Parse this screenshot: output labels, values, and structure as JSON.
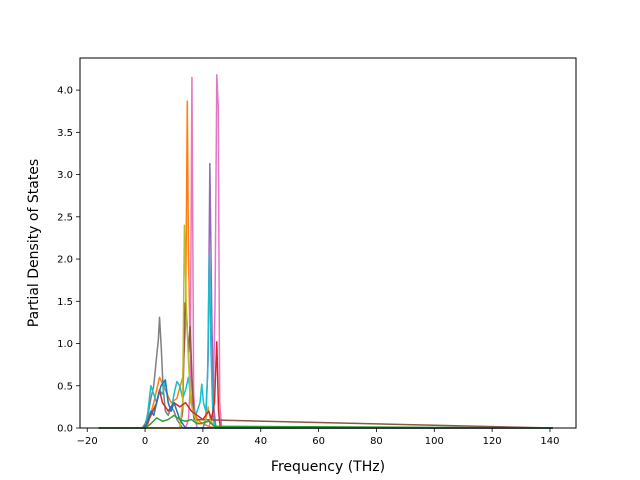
{
  "chart_data": {
    "type": "line",
    "title": "",
    "xlabel": "Frequency (THz)",
    "ylabel": "Partial Density of States",
    "xlim": [
      -22.5,
      149.0
    ],
    "ylim": [
      0.0,
      4.38
    ],
    "xticks": [
      -20,
      0,
      20,
      40,
      60,
      80,
      100,
      120,
      140
    ],
    "yticks": [
      0.0,
      0.5,
      1.0,
      1.5,
      2.0,
      2.5,
      3.0,
      3.5,
      4.0
    ],
    "xtick_labels": [
      "−20",
      "0",
      "20",
      "40",
      "60",
      "80",
      "100",
      "120",
      "140"
    ],
    "ytick_labels": [
      "0.0",
      "0.5",
      "1.0",
      "1.5",
      "2.0",
      "2.5",
      "3.0",
      "3.5",
      "4.0"
    ],
    "grid": false,
    "legend": "none",
    "series": [
      {
        "color": "#ff7f0e",
        "x": [
          -16,
          -1,
          1,
          3,
          5,
          7,
          9,
          11,
          13,
          14,
          14.6,
          15,
          15.6,
          16.4,
          18,
          20,
          22,
          24,
          26,
          141
        ],
        "y": [
          0,
          0,
          0.05,
          0.3,
          0.6,
          0.45,
          0.3,
          0.35,
          0.6,
          1.2,
          3.87,
          2.1,
          0.9,
          0.3,
          0.1,
          0.05,
          0.02,
          0,
          0,
          0
        ]
      },
      {
        "color": "#e377c2",
        "x": [
          -16,
          14,
          15,
          15.6,
          16.2,
          16.8,
          17.4,
          18,
          22,
          23.5,
          24.2,
          24.8,
          25.3,
          25.8,
          26.5,
          141
        ],
        "y": [
          0,
          0,
          0.1,
          0.5,
          4.15,
          0.4,
          0.1,
          0,
          0,
          0.2,
          1.5,
          4.18,
          3.8,
          0.3,
          0,
          0
        ]
      },
      {
        "color": "#9467bd",
        "x": [
          -16,
          20,
          21,
          21.8,
          22.4,
          23,
          23.6,
          24.5,
          141
        ],
        "y": [
          0,
          0,
          0.1,
          0.8,
          3.13,
          1.5,
          0.3,
          0,
          0
        ]
      },
      {
        "color": "#7f7f7f",
        "x": [
          -16,
          -1,
          0,
          1,
          2,
          3,
          4,
          4.6,
          5,
          5.6,
          6.2,
          7,
          8,
          9,
          10,
          11,
          12,
          13,
          141
        ],
        "y": [
          0,
          0,
          0.05,
          0.15,
          0.35,
          0.5,
          0.85,
          1.05,
          1.31,
          0.95,
          0.5,
          0.2,
          0.15,
          0.25,
          0.2,
          0.1,
          0.05,
          0,
          0
        ]
      },
      {
        "color": "#17becf",
        "x": [
          -16,
          0,
          1,
          2,
          3,
          4,
          5,
          6,
          7,
          8,
          9,
          10,
          11,
          12,
          13,
          14,
          15,
          16,
          17,
          18,
          19,
          19.6,
          20.2,
          21,
          21.6,
          22.2,
          22.8,
          23.4,
          24,
          141
        ],
        "y": [
          0,
          0,
          0.2,
          0.5,
          0.4,
          0.3,
          0.45,
          0.4,
          0.55,
          0.3,
          0.2,
          0.4,
          0.55,
          0.5,
          0.35,
          0.45,
          0.6,
          0.3,
          0.1,
          0.2,
          0.3,
          0.52,
          0.3,
          0.2,
          0.6,
          2.05,
          0.9,
          0.2,
          0,
          0
        ]
      },
      {
        "color": "#8c564b",
        "x": [
          -16,
          12,
          13,
          13.8,
          14.4,
          15,
          15.6,
          16.2,
          17,
          141
        ],
        "y": [
          0,
          0,
          0.2,
          1.48,
          1.3,
          0.9,
          1.2,
          0.6,
          0.1,
          0
        ]
      },
      {
        "color": "#bcbd22",
        "x": [
          -16,
          12,
          13,
          13.6,
          14.2,
          15,
          15.8,
          16.6,
          17.5,
          18.5,
          20,
          21,
          21.8,
          22.6,
          24,
          141
        ],
        "y": [
          0,
          0,
          0.3,
          2.4,
          1.5,
          0.8,
          0.3,
          0.2,
          0.1,
          0.05,
          0.05,
          0.1,
          0.25,
          0.1,
          0,
          0
        ]
      },
      {
        "color": "#d62728",
        "x": [
          -16,
          0,
          2,
          4,
          5,
          6,
          8,
          10,
          12,
          14,
          16,
          18,
          20,
          22,
          23,
          24,
          24.8,
          25.4,
          26,
          141
        ],
        "y": [
          0,
          0,
          0.15,
          0.3,
          0.45,
          0.3,
          0.2,
          0.3,
          0.25,
          0.3,
          0.2,
          0.15,
          0.1,
          0.2,
          0.1,
          0.3,
          1.02,
          0.2,
          0,
          0
        ]
      },
      {
        "color": "#1f77b4",
        "x": [
          -16,
          -0.5,
          0.5,
          2,
          3,
          4,
          5.5,
          7,
          8,
          9,
          10,
          11,
          12,
          13,
          14,
          141
        ],
        "y": [
          0,
          0,
          0.05,
          0.2,
          0.15,
          0.3,
          0.5,
          0.57,
          0.3,
          0.2,
          0.3,
          0.2,
          0.1,
          0.05,
          0,
          0
        ]
      },
      {
        "color": "#2ca02c",
        "x": [
          -16,
          0,
          2,
          4,
          6,
          8,
          10,
          12,
          14,
          16,
          18,
          20,
          22,
          24,
          141
        ],
        "y": [
          0,
          0,
          0.05,
          0.12,
          0.08,
          0.1,
          0.15,
          0.1,
          0.08,
          0.1,
          0.05,
          0.06,
          0.08,
          0.02,
          0
        ]
      }
    ]
  }
}
